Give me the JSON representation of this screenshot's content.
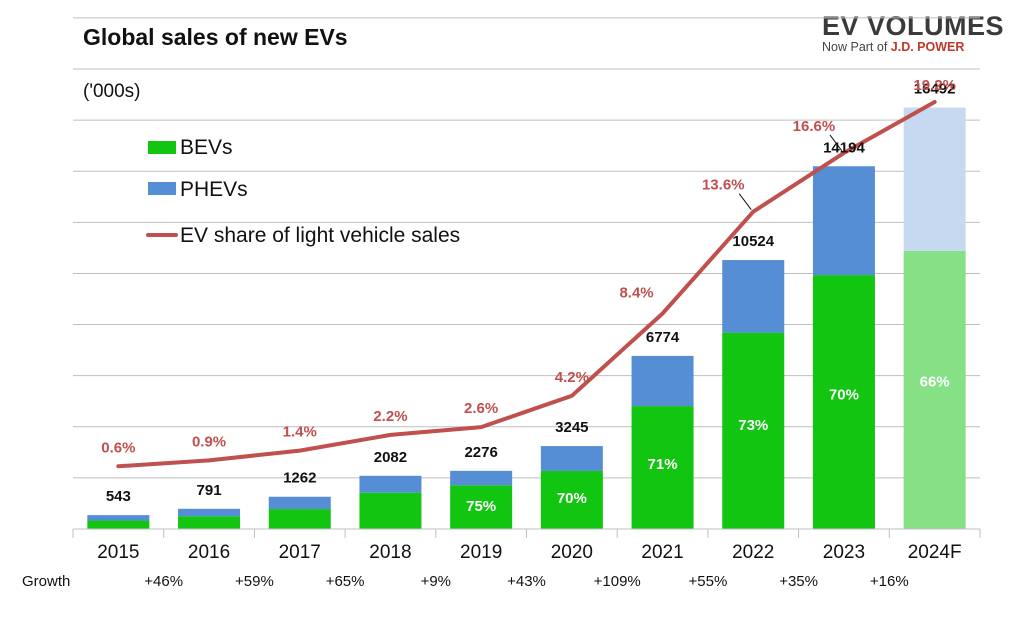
{
  "chart_data": {
    "type": "bar",
    "title": "Global sales of new EVs",
    "units_label": "('000s)",
    "categories": [
      "2015",
      "2016",
      "2017",
      "2018",
      "2019",
      "2020",
      "2021",
      "2022",
      "2023",
      "2024F"
    ],
    "totals": [
      543,
      791,
      1262,
      2082,
      2276,
      3245,
      6774,
      10524,
      14194,
      16492
    ],
    "series": [
      {
        "name": "BEVs",
        "color": "#11c511",
        "forecast_color": "#86e086",
        "values": [
          330,
          500,
          780,
          1420,
          1707,
          2272,
          4810,
          7683,
          9936,
          10885
        ]
      },
      {
        "name": "PHEVs",
        "color": "#558ed5",
        "forecast_color": "#c6d9f0",
        "values": [
          213,
          291,
          482,
          662,
          569,
          973,
          1964,
          2841,
          4258,
          5607
        ]
      }
    ],
    "bev_share_labels": [
      "",
      "",
      "",
      "",
      "75%",
      "70%",
      "71%",
      "73%",
      "70%",
      "66%"
    ],
    "line_series": {
      "name": "EV share of light vehicle sales",
      "color": "#c0504d",
      "values": [
        0.6,
        0.9,
        1.4,
        2.2,
        2.6,
        4.2,
        8.4,
        13.6,
        16.6,
        19.2
      ],
      "labels": [
        "0.6%",
        "0.9%",
        "1.4%",
        "2.2%",
        "2.6%",
        "4.2%",
        "8.4%",
        "13.6%",
        "16.6%",
        "19.2%"
      ]
    },
    "growth_label": "Growth",
    "growth": [
      "+46%",
      "+59%",
      "+65%",
      "+9%",
      "+43%",
      "+109%",
      "+55%",
      "+35%",
      "+16%"
    ],
    "ylim": [
      0,
      18000
    ],
    "grid": true,
    "legend_position": "top-left"
  },
  "brand": {
    "name": "EV VOLUMES",
    "tagline_prefix": "Now Part of ",
    "tagline_company": "J.D. POWER"
  }
}
